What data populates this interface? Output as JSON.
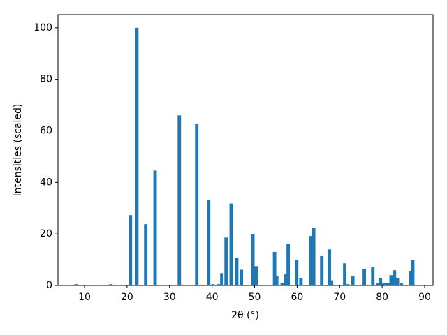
{
  "chart_data": {
    "type": "bar",
    "xlabel": "2θ (°)",
    "ylabel": "Intensities (scaled)",
    "x": [
      8.0,
      16.2,
      20.8,
      22.3,
      24.4,
      26.6,
      32.3,
      33.0,
      36.4,
      37.4,
      39.2,
      40.2,
      41.5,
      42.3,
      43.3,
      44.5,
      45.8,
      46.9,
      49.6,
      50.4,
      54.7,
      55.2,
      56.5,
      57.3,
      57.9,
      59.9,
      60.9,
      63.2,
      63.9,
      65.8,
      67.6,
      68.1,
      71.2,
      71.9,
      73.1,
      75.8,
      76.8,
      77.8,
      79.0,
      79.6,
      80.4,
      81.3,
      82.1,
      82.9,
      83.6,
      84.5,
      86.7,
      87.2
    ],
    "values": [
      0.5,
      0.5,
      27.3,
      100,
      23.8,
      44.6,
      66,
      0.3,
      62.8,
      0.3,
      33.2,
      0.5,
      0.5,
      4.8,
      18.6,
      31.8,
      10.8,
      6.1,
      20,
      7.5,
      13,
      3.6,
      1,
      4.3,
      16.2,
      10,
      2.9,
      19.2,
      22.4,
      11.4,
      14,
      2,
      8.6,
      0.5,
      3.5,
      6.4,
      0.3,
      7.2,
      0.8,
      2.9,
      1,
      1,
      4,
      5.9,
      2.7,
      0.8,
      5.5,
      10
    ],
    "color": "#1f77b4",
    "xlim": [
      3.76,
      91.97
    ],
    "xticks": [
      10,
      20,
      30,
      40,
      50,
      60,
      70,
      80,
      90
    ],
    "ylim": [
      0,
      105.1
    ],
    "yticks": [
      0,
      20,
      40,
      60,
      80,
      100
    ],
    "grid": false
  }
}
